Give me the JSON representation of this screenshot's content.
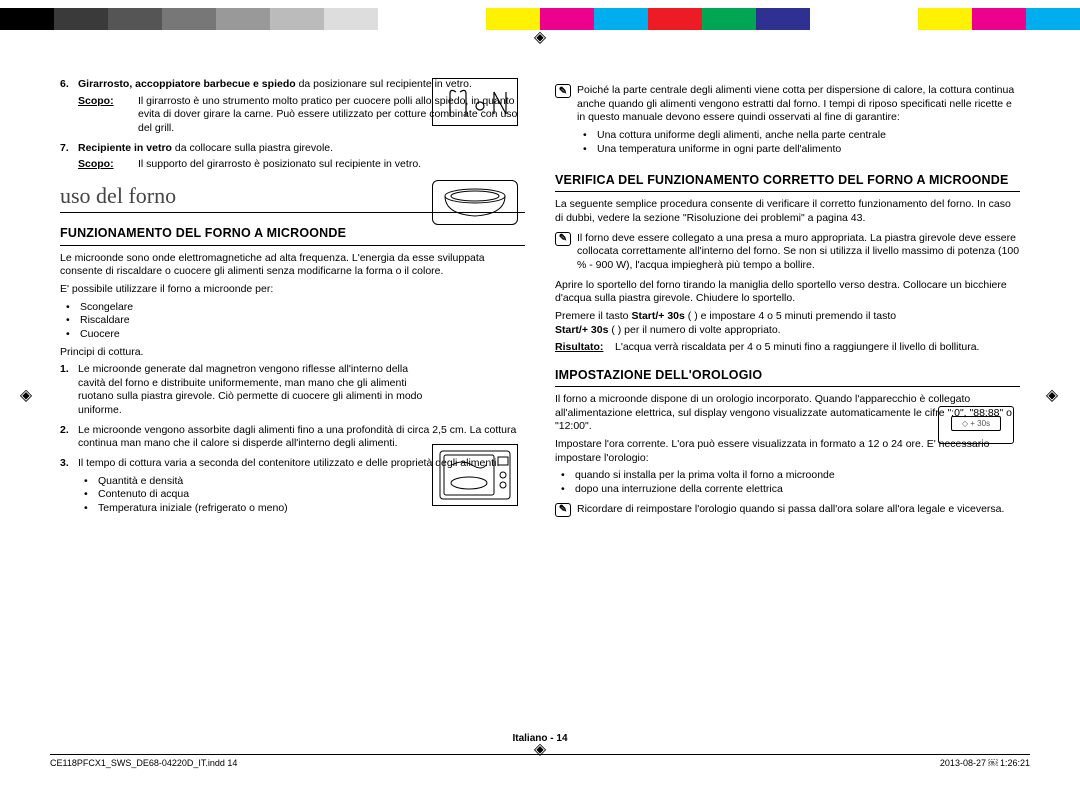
{
  "colorBar": [
    "#000000",
    "#3a3a3a",
    "#555555",
    "#777777",
    "#999999",
    "#bbbbbb",
    "#dddddd",
    "#ffffff",
    "#ffffff",
    "#fff200",
    "#ec008c",
    "#00aeef",
    "#ed1c24",
    "#00a651",
    "#2e3192",
    "#ffffff",
    "#ffffff",
    "#fff200",
    "#ec008c",
    "#00aeef"
  ],
  "left": {
    "item6": {
      "num": "6.",
      "title": "Girarrosto, accoppiatore barbecue e spiedo",
      "tail": " da posizionare sul recipiente in vetro.",
      "scopoLabel": "Scopo:",
      "scopoText": "Il girarrosto è uno strumento molto pratico per cuocere polli allo spiedo, in quanto evita di dover girare la carne. Può essere utilizzato per cotture combinate con uso del grill."
    },
    "item7": {
      "num": "7.",
      "title": "Recipiente in vetro",
      "tail": " da collocare sulla piastra girevole.",
      "scopoLabel": "Scopo:",
      "scopoText": "Il supporto del girarrosto è posizionato sul recipiente in vetro."
    },
    "sectionTitle": "uso del forno",
    "h2a": "FUNZIONAMENTO DEL FORNO A MICROONDE",
    "p1": "Le microonde sono onde elettromagnetiche ad alta frequenza. L'energia da esse sviluppata consente di riscaldare o cuocere gli alimenti senza modificarne la forma o il colore.",
    "p2": "E' possibile utilizzare il forno a microonde per:",
    "uses": [
      "Scongelare",
      "Riscaldare",
      "Cuocere"
    ],
    "p3": "Principi di cottura.",
    "n1num": "1.",
    "n1": "Le microonde generate dal magnetron vengono riflesse all'interno della cavità del forno e distribuite uniformemente, man mano che gli alimenti ruotano sulla piastra girevole. Ciò permette di cuocere gli alimenti in modo uniforme.",
    "n2num": "2.",
    "n2": "Le microonde vengono assorbite dagli alimenti fino a una profondità di circa 2,5 cm. La cottura continua man mano che il calore si disperde all'interno degli alimenti.",
    "n3num": "3.",
    "n3": "Il tempo di cottura varia a seconda del contenitore utilizzato e delle proprietà degli alimenti:",
    "n3list": [
      "Quantità e densità",
      "Contenuto di acqua",
      "Temperatura iniziale (refrigerato o meno)"
    ]
  },
  "right": {
    "noteTop": "Poiché la parte centrale degli alimenti viene cotta per dispersione di calore, la cottura continua anche quando gli alimenti vengono estratti dal forno. I tempi di riposo specificati nelle ricette e in questo manuale devono essere quindi osservati al fine di garantire:",
    "noteList": [
      "Una cottura uniforme degli alimenti, anche nella parte centrale",
      "Una temperatura uniforme in ogni parte dell'alimento"
    ],
    "h2a": "VERIFICA DEL FUNZIONAMENTO CORRETTO DEL FORNO A MICROONDE",
    "p1": "La seguente semplice procedura consente di verificare il corretto funzionamento del forno. In caso di dubbi, vedere la sezione \"Risoluzione dei problemi\" a pagina 43.",
    "note2": "Il forno deve essere collegato a una presa a muro appropriata. La piastra girevole deve essere collocata correttamente all'interno del forno. Se non si utilizza il livello massimo di potenza (100 % - 900 W), l'acqua impiegherà più tempo a bollire.",
    "p2": "Aprire lo sportello del forno tirando la maniglia dello sportello verso destra. Collocare un bicchiere d'acqua sulla piastra girevole. Chiudere lo sportello.",
    "p3a": "Premere il tasto ",
    "p3b": "Start/+ 30s",
    "p3c": " (   ) e impostare 4 o 5 minuti premendo il tasto ",
    "p3d": "Start/+ 30s",
    "p3e": " (   ) per il numero di volte appropriato.",
    "resLabel": "Risultato:",
    "resText": "L'acqua verrà riscaldata per 4 o 5 minuti fino a raggiungere il livello di bollitura.",
    "h2b": "IMPOSTAZIONE DELL'OROLOGIO",
    "p4": "Il forno a microonde dispone di un orologio incorporato. Quando l'apparecchio è collegato all'alimentazione elettrica, sul display vengono visualizzate automaticamente le cifre \":0\", \"88:88\" o \"12:00\".",
    "p5": "Impostare l'ora corrente. L'ora può essere visualizzata in formato a 12 o 24 ore. E' necessario impostare l'orologio:",
    "p5list": [
      "quando si installa per la prima volta il forno a microonde",
      "dopo una interruzione della corrente elettrica"
    ],
    "note3": "Ricordare di reimpostare l'orologio quando si passa dall'ora solare all'ora legale e viceversa.",
    "btnLabel": "◇ + 30s"
  },
  "footer": "Italiano - 14",
  "footFile": "CE118PFCX1_SWS_DE68-04220D_IT.indd   14",
  "footTime": "2013-08-27   ￼ 1:26:21"
}
